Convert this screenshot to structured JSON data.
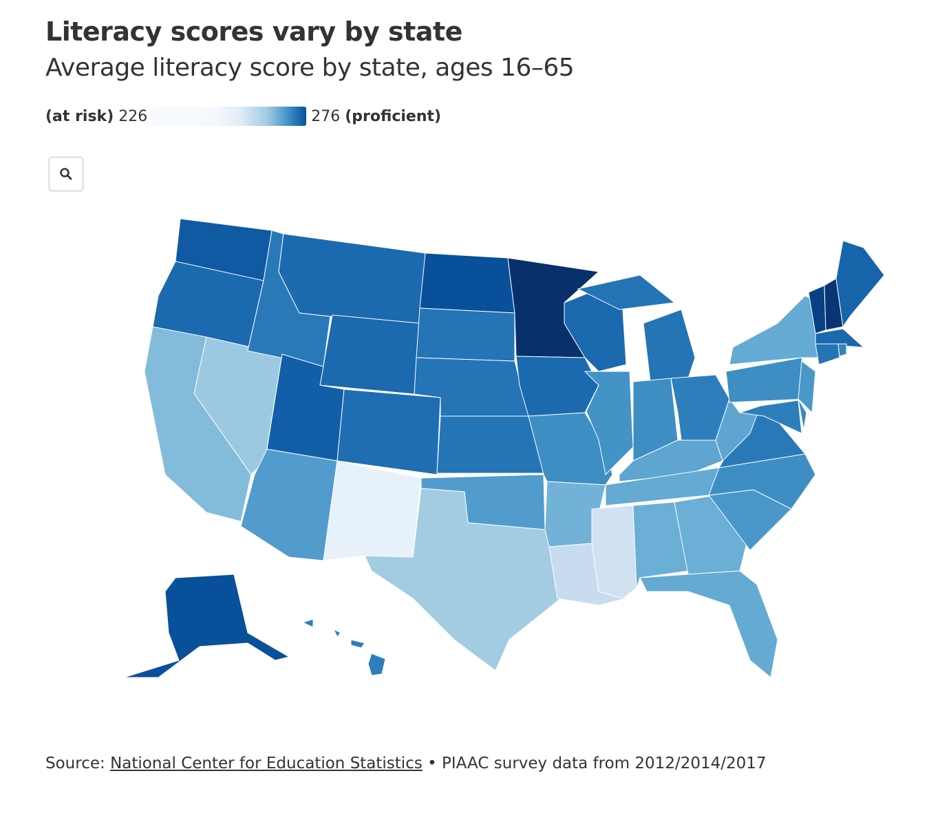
{
  "title": "Literacy scores vary by state",
  "subtitle": "Average literacy score by state, ages 16–65",
  "legend": {
    "low_label": "(at risk)",
    "low_value": "226",
    "high_value": "276",
    "high_label": "(proficient)"
  },
  "zoom_button_icon": "search-icon",
  "source": {
    "prefix": "Source:",
    "link_text": "National Center for Education Statistics",
    "suffix": "• PIAAC survey data from 2012/2014/2017"
  },
  "colors": {
    "low": "#f7fbff",
    "high": "#08306b"
  },
  "chart_data": {
    "type": "choropleth",
    "metric": "Average literacy score",
    "domain": [
      226,
      276
    ],
    "values": {
      "MN": 276,
      "NH": 275,
      "VT": 273,
      "AK": 270,
      "ND": 270,
      "WA": 268,
      "UT": 267,
      "ME": 266,
      "MT": 265,
      "OR": 265,
      "WY": 265,
      "WI": 265,
      "IA": 265,
      "MA": 265,
      "CO": 264,
      "KS": 263,
      "NE": 263,
      "SD": 263,
      "CT": 263,
      "MI": 263,
      "ID": 262,
      "VA": 262,
      "HI": 261,
      "OH": 261,
      "MD": 261,
      "RI": 260,
      "DE": 259,
      "PA": 258,
      "IN": 258,
      "MO": 258,
      "NC": 258,
      "IL": 257,
      "SC": 256,
      "NJ": 256,
      "OK": 255,
      "AZ": 255,
      "KY": 253,
      "WV": 253,
      "NY": 252,
      "TN": 252,
      "FL": 252,
      "AL": 251,
      "GA": 251,
      "AR": 250,
      "CA": 248,
      "NV": 245,
      "TX": 244,
      "LA": 238,
      "MS": 236,
      "NM": 230
    }
  }
}
